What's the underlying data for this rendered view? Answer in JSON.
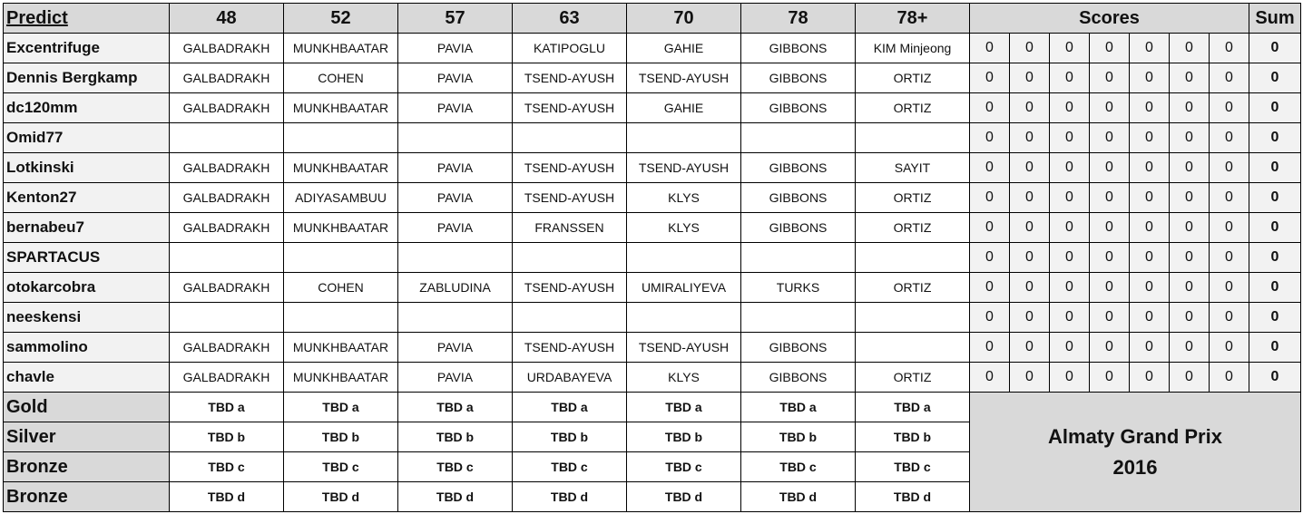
{
  "header": {
    "predict": "Predict",
    "categories": [
      "48",
      "52",
      "57",
      "63",
      "70",
      "78",
      "78+"
    ],
    "scores": "Scores",
    "sum": "Sum"
  },
  "rows": [
    {
      "name": "Excentrifuge",
      "picks": [
        "GALBADRAKH",
        "MUNKHBAATAR",
        "PAVIA",
        "KATIPOGLU",
        "GAHIE",
        "GIBBONS",
        "KIM Minjeong"
      ],
      "scores": [
        "0",
        "0",
        "0",
        "0",
        "0",
        "0",
        "0"
      ],
      "sum": "0"
    },
    {
      "name": "Dennis Bergkamp",
      "picks": [
        "GALBADRAKH",
        "COHEN",
        "PAVIA",
        "TSEND-AYUSH",
        "TSEND-AYUSH",
        "GIBBONS",
        "ORTIZ"
      ],
      "scores": [
        "0",
        "0",
        "0",
        "0",
        "0",
        "0",
        "0"
      ],
      "sum": "0"
    },
    {
      "name": "dc120mm",
      "picks": [
        "GALBADRAKH",
        "MUNKHBAATAR",
        "PAVIA",
        "TSEND-AYUSH",
        "GAHIE",
        "GIBBONS",
        "ORTIZ"
      ],
      "scores": [
        "0",
        "0",
        "0",
        "0",
        "0",
        "0",
        "0"
      ],
      "sum": "0"
    },
    {
      "name": "Omid77",
      "picks": [
        "",
        "",
        "",
        "",
        "",
        "",
        ""
      ],
      "scores": [
        "0",
        "0",
        "0",
        "0",
        "0",
        "0",
        "0"
      ],
      "sum": "0"
    },
    {
      "name": "Lotkinski",
      "picks": [
        "GALBADRAKH",
        "MUNKHBAATAR",
        "PAVIA",
        "TSEND-AYUSH",
        "TSEND-AYUSH",
        "GIBBONS",
        "SAYIT"
      ],
      "scores": [
        "0",
        "0",
        "0",
        "0",
        "0",
        "0",
        "0"
      ],
      "sum": "0"
    },
    {
      "name": "Kenton27",
      "picks": [
        "GALBADRAKH",
        "ADIYASAMBUU",
        "PAVIA",
        "TSEND-AYUSH",
        "KLYS",
        "GIBBONS",
        "ORTIZ"
      ],
      "scores": [
        "0",
        "0",
        "0",
        "0",
        "0",
        "0",
        "0"
      ],
      "sum": "0"
    },
    {
      "name": "bernabeu7",
      "picks": [
        "GALBADRAKH",
        "MUNKHBAATAR",
        "PAVIA",
        "FRANSSEN",
        "KLYS",
        "GIBBONS",
        "ORTIZ"
      ],
      "scores": [
        "0",
        "0",
        "0",
        "0",
        "0",
        "0",
        "0"
      ],
      "sum": "0"
    },
    {
      "name": "SPARTACUS",
      "picks": [
        "",
        "",
        "",
        "",
        "",
        "",
        ""
      ],
      "scores": [
        "0",
        "0",
        "0",
        "0",
        "0",
        "0",
        "0"
      ],
      "sum": "0"
    },
    {
      "name": "otokarcobra",
      "picks": [
        "GALBADRAKH",
        "COHEN",
        "ZABLUDINA",
        "TSEND-AYUSH",
        "UMIRALIYEVA",
        "TURKS",
        "ORTIZ"
      ],
      "scores": [
        "0",
        "0",
        "0",
        "0",
        "0",
        "0",
        "0"
      ],
      "sum": "0"
    },
    {
      "name": "neeskensi",
      "picks": [
        "",
        "",
        "",
        "",
        "",
        "",
        ""
      ],
      "scores": [
        "0",
        "0",
        "0",
        "0",
        "0",
        "0",
        "0"
      ],
      "sum": "0"
    },
    {
      "name": "sammolino",
      "picks": [
        "GALBADRAKH",
        "MUNKHBAATAR",
        "PAVIA",
        "TSEND-AYUSH",
        "TSEND-AYUSH",
        "GIBBONS",
        ""
      ],
      "scores": [
        "0",
        "0",
        "0",
        "0",
        "0",
        "0",
        "0"
      ],
      "sum": "0"
    },
    {
      "name": "chavle",
      "picks": [
        "GALBADRAKH",
        "MUNKHBAATAR",
        "PAVIA",
        "URDABAYEVA",
        "KLYS",
        "GIBBONS",
        "ORTIZ"
      ],
      "scores": [
        "0",
        "0",
        "0",
        "0",
        "0",
        "0",
        "0"
      ],
      "sum": "0"
    }
  ],
  "medals": [
    {
      "label": "Gold",
      "values": [
        "TBD a",
        "TBD a",
        "TBD a",
        "TBD a",
        "TBD a",
        "TBD a",
        "TBD a"
      ]
    },
    {
      "label": "Silver",
      "values": [
        "TBD b",
        "TBD b",
        "TBD b",
        "TBD b",
        "TBD b",
        "TBD b",
        "TBD b"
      ]
    },
    {
      "label": "Bronze",
      "values": [
        "TBD c",
        "TBD c",
        "TBD c",
        "TBD c",
        "TBD c",
        "TBD c",
        "TBD c"
      ]
    },
    {
      "label": "Bronze",
      "values": [
        "TBD d",
        "TBD d",
        "TBD d",
        "TBD d",
        "TBD d",
        "TBD d",
        "TBD d"
      ]
    }
  ],
  "event": {
    "line1": "Almaty Grand Prix",
    "line2": "2016"
  }
}
